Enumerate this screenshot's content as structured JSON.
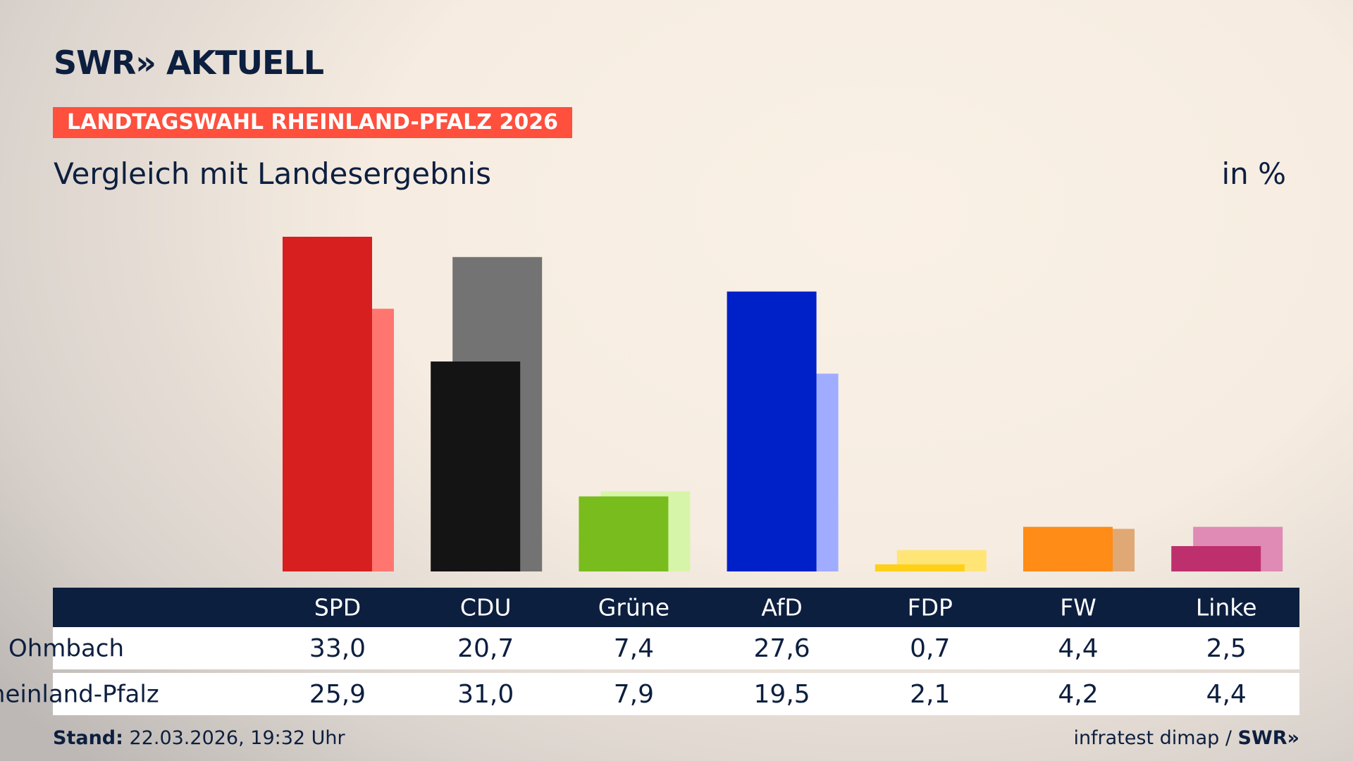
{
  "chart_data": {
    "type": "bar",
    "logo": "SWR» AKTUELL",
    "title": "LANDTAGSWAHL RHEINLAND-PFALZ 2026",
    "subtitle": "Vergleich mit Landesergebnis",
    "unit": "in %",
    "categories": [
      "SPD",
      "CDU",
      "Grüne",
      "AfD",
      "FDP",
      "FW",
      "Linke"
    ],
    "series": [
      {
        "name": "Ohmbach",
        "values": [
          33.0,
          20.7,
          7.4,
          27.6,
          0.7,
          4.4,
          2.5
        ],
        "value_labels": [
          "33,0",
          "20,7",
          "7,4",
          "27,6",
          "0,7",
          "4,4",
          "2,5"
        ],
        "colors": [
          "#d71f1f",
          "#141414",
          "#79bc1e",
          "#0020c8",
          "#ffd01a",
          "#ff8c17",
          "#be2f6e"
        ]
      },
      {
        "name": "Rheinland-Pfalz",
        "values": [
          25.9,
          31.0,
          7.9,
          19.5,
          2.1,
          4.2,
          4.4
        ],
        "value_labels": [
          "25,9",
          "31,0",
          "7,9",
          "19,5",
          "2,1",
          "4,2",
          "4,4"
        ],
        "colors": [
          "#ff7670",
          "#737373",
          "#d7f5a8",
          "#a0acff",
          "#ffe575",
          "#e0a874",
          "#e08ab6"
        ]
      }
    ],
    "footer_label": "Stand:",
    "footer_date": "22.03.2026, 19:32 Uhr",
    "source": "infratest dimap",
    "source_logo": "SWR»"
  }
}
